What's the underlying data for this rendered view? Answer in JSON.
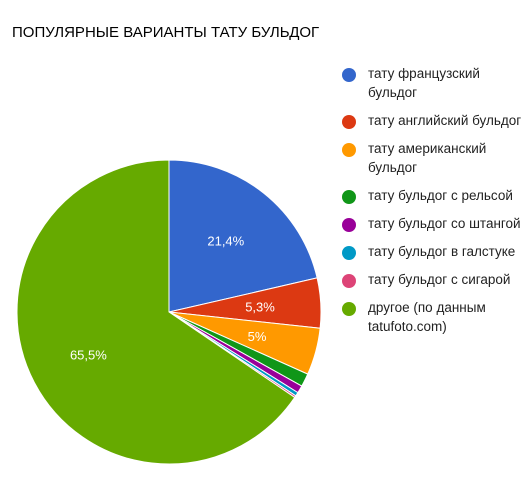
{
  "chart_data": {
    "type": "pie",
    "title": "ПОПУЛЯРНЫЕ ВАРИАНТЫ ТАТУ БУЛЬДОГ",
    "legend_position": "right",
    "slices": [
      {
        "label": "тату французский бульдог",
        "value": 21.4,
        "display": "21,4%",
        "color": "#3366cc"
      },
      {
        "label": "тату английский бульдог",
        "value": 5.3,
        "display": "5,3%",
        "color": "#dc3912"
      },
      {
        "label": "тату американский бульдог",
        "value": 5.0,
        "display": "5%",
        "color": "#ff9900"
      },
      {
        "label": "тату бульдог с рельсой",
        "value": 1.4,
        "display": "",
        "color": "#109618"
      },
      {
        "label": "тату бульдог со штангой",
        "value": 0.8,
        "display": "",
        "color": "#990099"
      },
      {
        "label": "тату бульдог в галстуке",
        "value": 0.4,
        "display": "",
        "color": "#0099c6"
      },
      {
        "label": "тату бульдог с сигарой",
        "value": 0.2,
        "display": "",
        "color": "#dd4477"
      },
      {
        "label": "другое (по данным tatufoto.com)",
        "value": 65.5,
        "display": "65,5%",
        "color": "#66aa00"
      }
    ]
  }
}
